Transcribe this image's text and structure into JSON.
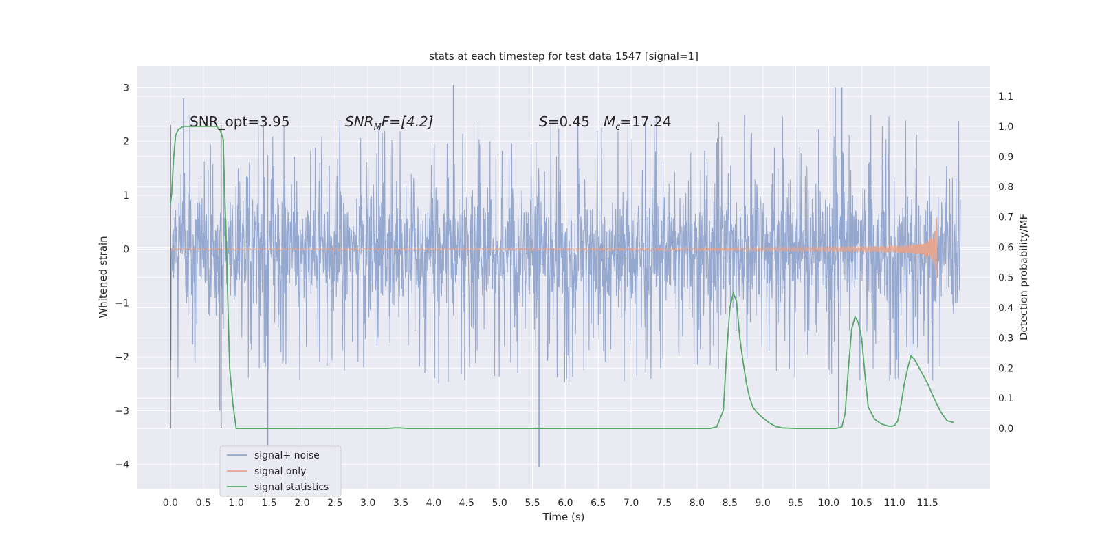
{
  "chart_data": {
    "type": "line",
    "title": "stats at each timestep for test data 1547 [signal=1]",
    "xlabel": "Time (s)",
    "ylabel_left": "Whitened strain",
    "ylabel_right": "Detection probability/MF",
    "xlim": [
      -0.5,
      12.45
    ],
    "ylim_left": [
      -4.45,
      3.4
    ],
    "ylim_right": [
      -0.2,
      1.2
    ],
    "x_ticks": [
      "0.0",
      "0.5",
      "1.0",
      "1.5",
      "2.0",
      "2.5",
      "3.0",
      "3.5",
      "4.0",
      "4.5",
      "5.0",
      "5.5",
      "6.0",
      "6.5",
      "7.0",
      "7.5",
      "8.0",
      "8.5",
      "9.0",
      "9.5",
      "10.0",
      "10.5",
      "11.0",
      "11.5"
    ],
    "y_ticks_left": [
      {
        "v": 3,
        "label": "3"
      },
      {
        "v": 2,
        "label": "2"
      },
      {
        "v": 1,
        "label": "1"
      },
      {
        "v": 0,
        "label": "0"
      },
      {
        "v": -1,
        "label": "−1"
      },
      {
        "v": -2,
        "label": "−2"
      },
      {
        "v": -3,
        "label": "−3"
      },
      {
        "v": -4,
        "label": "−4"
      }
    ],
    "y_ticks_right": [
      "0.0",
      "0.1",
      "0.2",
      "0.3",
      "0.4",
      "0.5",
      "0.6",
      "0.7",
      "0.8",
      "0.9",
      "1.0",
      "1.1"
    ],
    "grid": true,
    "legend_position": "lower-left",
    "annotations": {
      "snr_opt": "SNR_opt=3.95",
      "snr_mf_name": "SNR",
      "snr_mf_sub": "M",
      "snr_mf_rest": "F=[4.2]",
      "s_name": "S",
      "s_value": "=0.45",
      "mc_name": "M",
      "mc_sub": "c",
      "mc_value": "=17.24"
    },
    "vertical_markers": [
      0.0,
      0.77
    ],
    "noise_envelope": {
      "x_start": 0.0,
      "x_end": 12.0,
      "typical_max": 1.8,
      "typical_min": -1.7,
      "extreme_max": 3.05,
      "extreme_min": -4.05,
      "spikes": [
        {
          "x": 0.2,
          "y": 2.8
        },
        {
          "x": 4.3,
          "y": 3.05
        },
        {
          "x": 10.1,
          "y": 3.0
        },
        {
          "x": 10.2,
          "y": 3.0
        },
        {
          "x": 1.48,
          "y": -3.65
        },
        {
          "x": 5.6,
          "y": -4.05
        },
        {
          "x": 0.75,
          "y": -3.0
        },
        {
          "x": 10.15,
          "y": -3.3
        }
      ]
    },
    "series": [
      {
        "name": "signal+ noise",
        "color": "#8fa4cd",
        "axis": "left"
      },
      {
        "name": "signal only",
        "color": "#e8a38a",
        "axis": "left",
        "chirp": {
          "x_start": 0.0,
          "x_peak": 11.65,
          "amp_peak": 0.72
        }
      },
      {
        "name": "signal statistics",
        "color": "#55a868",
        "axis": "right",
        "x": [
          0.0,
          0.02,
          0.05,
          0.08,
          0.12,
          0.2,
          0.3,
          0.4,
          0.5,
          0.6,
          0.7,
          0.75,
          0.8,
          0.85,
          0.9,
          0.95,
          1.0,
          1.1,
          1.5,
          2.0,
          2.5,
          3.0,
          3.3,
          3.4,
          3.5,
          3.6,
          4.0,
          5.0,
          6.0,
          7.0,
          8.0,
          8.2,
          8.3,
          8.4,
          8.45,
          8.5,
          8.55,
          8.6,
          8.65,
          8.7,
          8.75,
          8.8,
          8.85,
          8.9,
          9.0,
          9.1,
          9.2,
          9.3,
          9.5,
          9.8,
          10.0,
          10.1,
          10.15,
          10.2,
          10.25,
          10.3,
          10.35,
          10.4,
          10.45,
          10.5,
          10.55,
          10.6,
          10.7,
          10.8,
          10.9,
          10.95,
          11.0,
          11.05,
          11.1,
          11.15,
          11.2,
          11.25,
          11.3,
          11.4,
          11.5,
          11.6,
          11.7,
          11.8,
          11.9
        ],
        "y": [
          0.74,
          0.78,
          0.9,
          0.97,
          0.99,
          1.0,
          1.0,
          1.0,
          1.0,
          1.0,
          1.0,
          0.99,
          0.96,
          0.6,
          0.2,
          0.08,
          0.0,
          0.0,
          0.0,
          0.0,
          0.0,
          0.0,
          0.0,
          0.002,
          0.002,
          0.0,
          0.0,
          0.0,
          0.0,
          0.0,
          0.0,
          0.0,
          0.005,
          0.06,
          0.25,
          0.4,
          0.45,
          0.42,
          0.3,
          0.22,
          0.15,
          0.1,
          0.07,
          0.055,
          0.035,
          0.018,
          0.006,
          0.002,
          0.0,
          0.0,
          0.0,
          0.0,
          0.002,
          0.005,
          0.05,
          0.2,
          0.33,
          0.37,
          0.35,
          0.3,
          0.18,
          0.07,
          0.03,
          0.015,
          0.008,
          0.007,
          0.01,
          0.025,
          0.08,
          0.15,
          0.2,
          0.24,
          0.23,
          0.19,
          0.15,
          0.1,
          0.055,
          0.025,
          0.02
        ]
      }
    ]
  }
}
